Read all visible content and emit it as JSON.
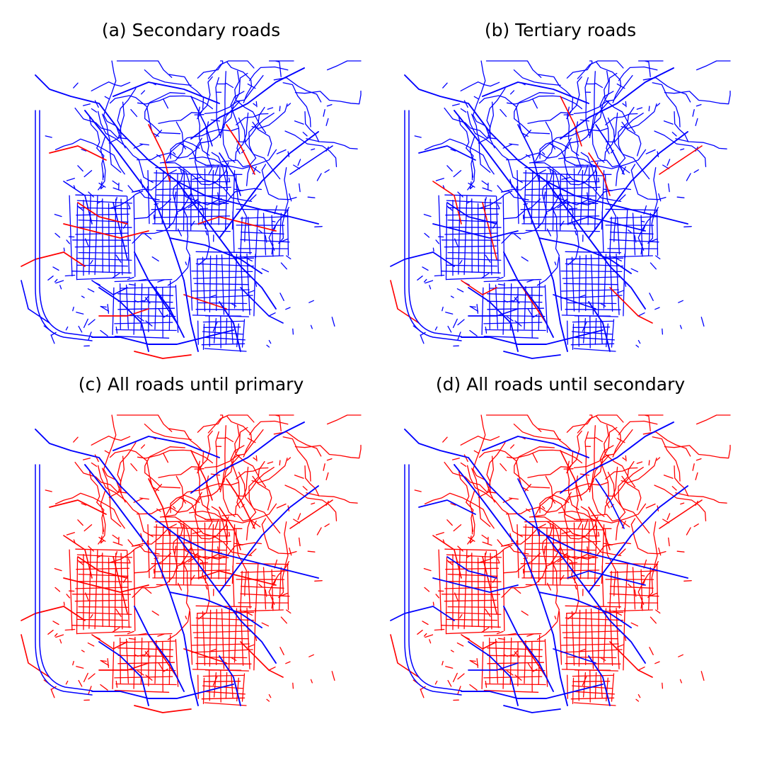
{
  "panels": [
    {
      "id": "a",
      "title": "(a) Secondary roads",
      "highlight": "secondary",
      "base_color": "#0000ff",
      "highlight_color": "#ff0000"
    },
    {
      "id": "b",
      "title": "(b) Tertiary roads",
      "highlight": "tertiary",
      "base_color": "#0000ff",
      "highlight_color": "#ff0000"
    },
    {
      "id": "c",
      "title": "(c) All roads until primary",
      "highlight": "until_primary",
      "base_color": "#ff0000",
      "highlight_color": "#0000ff"
    },
    {
      "id": "d",
      "title": "(d) All roads until secondary",
      "highlight": "until_secondary",
      "base_color": "#ff0000",
      "highlight_color": "#0000ff"
    }
  ],
  "colors": {
    "blue": "#0000ff",
    "red": "#ff0000",
    "background": "#ffffff"
  }
}
